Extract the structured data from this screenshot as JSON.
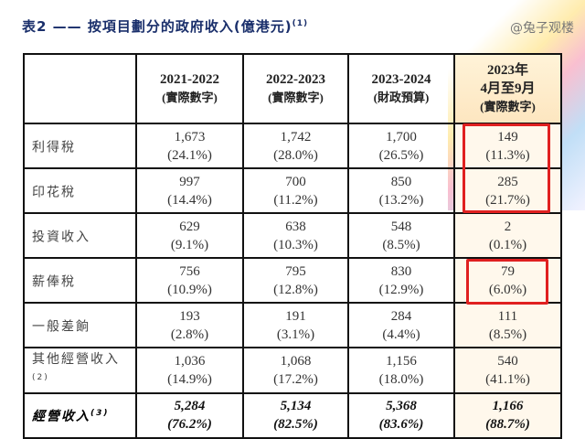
{
  "title": {
    "text": "表2 —— 按項目劃分的政府收入(億港元)",
    "note": "(1)"
  },
  "headers": [
    {
      "line1": "2021-2022",
      "line2": "(實際數字)"
    },
    {
      "line1": "2022-2023",
      "line2": "(實際數字)"
    },
    {
      "line1": "2023-2024",
      "line2": "(財政預算)"
    },
    {
      "line1": "2023年",
      "line1b": "4月至9月",
      "line2": "(實際數字)"
    }
  ],
  "rows": [
    {
      "label": "利得稅",
      "note": "",
      "cells": [
        [
          "1,673",
          "(24.1%)"
        ],
        [
          "1,742",
          "(28.0%)"
        ],
        [
          "1,700",
          "(26.5%)"
        ],
        [
          "149",
          "(11.3%)"
        ]
      ]
    },
    {
      "label": "印花稅",
      "note": "",
      "cells": [
        [
          "997",
          "(14.4%)"
        ],
        [
          "700",
          "(11.2%)"
        ],
        [
          "850",
          "(13.2%)"
        ],
        [
          "285",
          "(21.7%)"
        ]
      ]
    },
    {
      "label": "投資收入",
      "note": "",
      "cells": [
        [
          "629",
          "(9.1%)"
        ],
        [
          "638",
          "(10.3%)"
        ],
        [
          "548",
          "(8.5%)"
        ],
        [
          "2",
          "(0.1%)"
        ]
      ]
    },
    {
      "label": "薪俸稅",
      "note": "",
      "cells": [
        [
          "756",
          "(10.9%)"
        ],
        [
          "795",
          "(12.8%)"
        ],
        [
          "830",
          "(12.9%)"
        ],
        [
          "79",
          "(6.0%)"
        ]
      ]
    },
    {
      "label": "一般差餉",
      "note": "",
      "cells": [
        [
          "193",
          "(2.8%)"
        ],
        [
          "191",
          "(3.1%)"
        ],
        [
          "284",
          "(4.4%)"
        ],
        [
          "111",
          "(8.5%)"
        ]
      ]
    },
    {
      "label": "其他經營收入",
      "note": "(2)",
      "cells": [
        [
          "1,036",
          "(14.9%)"
        ],
        [
          "1,068",
          "(17.2%)"
        ],
        [
          "1,156",
          "(18.0%)"
        ],
        [
          "540",
          "(41.1%)"
        ]
      ]
    },
    {
      "label": "經營收入",
      "note": "(3)",
      "cells": [
        [
          "5,284",
          "(76.2%)"
        ],
        [
          "5,134",
          "(82.5%)"
        ],
        [
          "5,368",
          "(83.6%)"
        ],
        [
          "1,166",
          "(88.7%)"
        ]
      ]
    }
  ],
  "watermark": "@兔子观楼",
  "colors": {
    "title": "#1a2f6b",
    "highlight_box": "#e02020"
  }
}
